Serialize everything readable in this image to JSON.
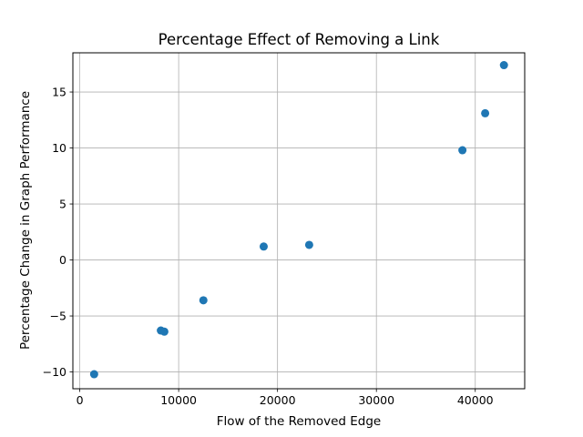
{
  "chart_data": {
    "type": "scatter",
    "title": "Percentage Effect of Removing a Link",
    "xlabel": "Flow of the Removed Edge",
    "ylabel": "Percentage Change in Graph Performance",
    "xlim": [
      -700,
      45000
    ],
    "ylim": [
      -11.5,
      18.5
    ],
    "xticks": [
      0,
      10000,
      20000,
      30000,
      40000
    ],
    "xtick_labels": [
      "0",
      "10000",
      "20000",
      "30000",
      "40000"
    ],
    "yticks": [
      -10,
      -5,
      0,
      5,
      10,
      15
    ],
    "ytick_labels": [
      "−10",
      "−5",
      "0",
      "5",
      "10",
      "15"
    ],
    "grid": true,
    "marker_color": "#1f77b4",
    "points": [
      {
        "x": 1450,
        "y": -10.2
      },
      {
        "x": 8200,
        "y": -6.3
      },
      {
        "x": 8550,
        "y": -6.4
      },
      {
        "x": 12500,
        "y": -3.6
      },
      {
        "x": 18600,
        "y": 1.2
      },
      {
        "x": 23200,
        "y": 1.35
      },
      {
        "x": 38700,
        "y": 9.8
      },
      {
        "x": 41000,
        "y": 13.1
      },
      {
        "x": 42900,
        "y": 17.4
      }
    ]
  }
}
